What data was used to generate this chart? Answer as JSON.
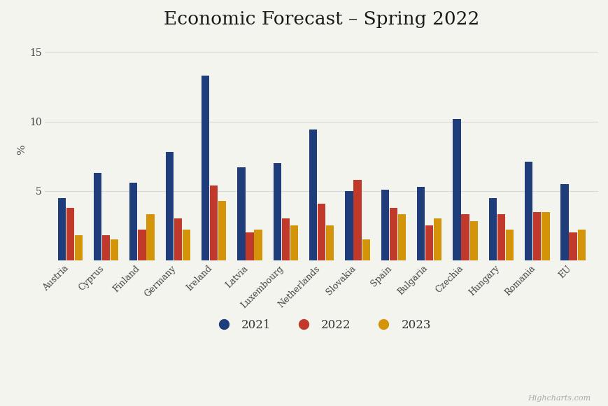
{
  "title": "Economic Forecast – Spring 2022",
  "ylabel": "%",
  "categories": [
    "Austria",
    "Cyprus",
    "Finland",
    "Germany",
    "Ireland",
    "Latvia",
    "Luxembourg",
    "Netherlands",
    "Slovakia",
    "Spain",
    "Bulgaria",
    "Czechia",
    "Hungary",
    "Romania",
    "EU"
  ],
  "d2021": [
    4.5,
    6.3,
    5.6,
    7.8,
    13.3,
    6.7,
    7.0,
    9.4,
    5.0,
    5.1,
    5.3,
    10.2,
    4.5,
    7.1,
    5.5
  ],
  "d2022": [
    3.8,
    1.8,
    2.2,
    3.0,
    5.4,
    2.0,
    3.0,
    4.1,
    5.8,
    3.8,
    2.5,
    3.3,
    3.3,
    3.5,
    2.0
  ],
  "d2023": [
    1.8,
    1.5,
    3.3,
    2.2,
    4.3,
    2.2,
    2.5,
    2.5,
    1.5,
    3.3,
    3.0,
    2.8,
    2.2,
    3.5,
    2.2
  ],
  "colors": {
    "2021": "#1f3d7a",
    "2022": "#c0392b",
    "2023": "#d4940a"
  },
  "background_color": "#f4f4ee",
  "ylim": [
    0,
    16
  ],
  "yticks": [
    0,
    5,
    10,
    15
  ],
  "grid_color": "#d8d8d8",
  "title_fontsize": 19,
  "tick_fontsize": 9,
  "legend_fontsize": 12,
  "bar_width": 0.22,
  "watermark": "Highcharts.com"
}
